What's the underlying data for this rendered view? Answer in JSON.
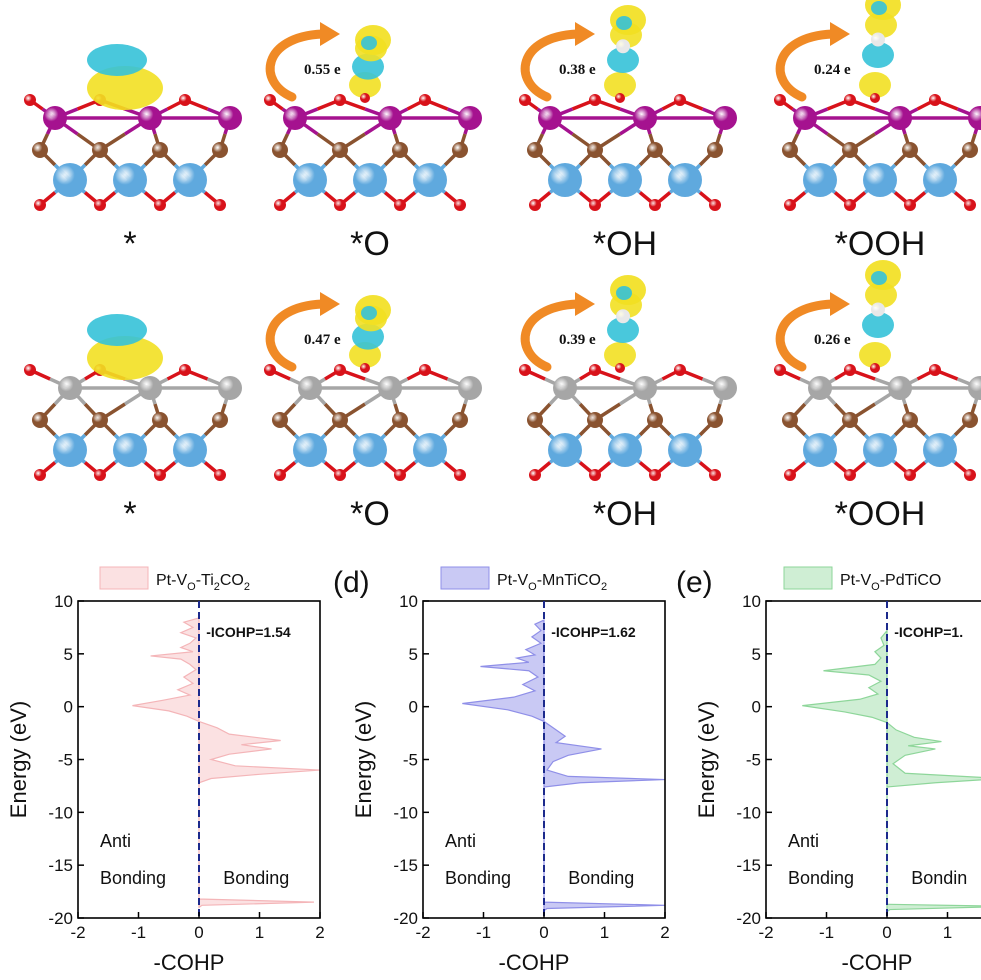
{
  "structures": {
    "rows": [
      {
        "name": "top-row",
        "labels": [
          "*",
          "*O",
          "*OH",
          "*OOH"
        ],
        "charges": [
          "",
          "0.55 e",
          "0.38 e",
          "0.24 e"
        ],
        "metal_color": "#a5128f"
      },
      {
        "name": "bottom-row",
        "labels": [
          "*",
          "*O",
          "*OH",
          "*OOH"
        ],
        "charges": [
          "",
          "0.47 e",
          "0.39 e",
          "0.26 e"
        ],
        "metal_color": "#a6a6a6"
      }
    ],
    "colors": {
      "yellow_iso": "#f2e022",
      "cyan_iso": "#35c2d8",
      "oxygen": "#d8121a",
      "carbon": "#8a5330",
      "titanium": "#5fa9de",
      "arrow": "#f08a25"
    }
  },
  "chart_data": [
    {
      "type": "area",
      "panel_letter": "",
      "legend": "Pt-VO-Ti2CO2",
      "legend_parts": {
        "a": "Pt-V",
        "b": "O",
        "c": "-Ti",
        "d": "2",
        "e": "CO",
        "f": "2"
      },
      "annotation": "-ICOHP=1.54",
      "color": "#f4b5b8",
      "fill": "#fbe1e2",
      "xlabel": "-COHP",
      "ylabel": "Energy (eV)",
      "xlim": [
        -2,
        2
      ],
      "ylim": [
        -20,
        10
      ],
      "xticks": [
        "-2",
        "-1",
        "0",
        "1",
        "2"
      ],
      "yticks": [
        "10",
        "5",
        "0",
        "-5",
        "-10",
        "-15",
        "-20"
      ],
      "region_labels": {
        "anti_line1": "Anti",
        "anti_line2": "Bonding",
        "bonding": "Bonding"
      },
      "points": [
        [
          0,
          8.4
        ],
        [
          -0.25,
          8
        ],
        [
          -0.1,
          7.5
        ],
        [
          -0.3,
          7
        ],
        [
          -0.05,
          6.5
        ],
        [
          -0.15,
          6
        ],
        [
          -0.3,
          5.6
        ],
        [
          -0.1,
          5.2
        ],
        [
          -0.8,
          4.8
        ],
        [
          -0.3,
          4.5
        ],
        [
          -0.15,
          4
        ],
        [
          -0.05,
          3.5
        ],
        [
          -0.25,
          2.8
        ],
        [
          -0.1,
          2.2
        ],
        [
          -0.35,
          1.6
        ],
        [
          -0.15,
          1.1
        ],
        [
          -0.6,
          0.6
        ],
        [
          -1.1,
          0.1
        ],
        [
          -0.5,
          -0.4
        ],
        [
          -0.2,
          -0.9
        ],
        [
          0,
          -1.4
        ],
        [
          0.3,
          -2
        ],
        [
          0.5,
          -2.6
        ],
        [
          1.35,
          -3.2
        ],
        [
          0.7,
          -3.6
        ],
        [
          1.2,
          -4
        ],
        [
          0.5,
          -4.5
        ],
        [
          0.2,
          -5
        ],
        [
          0.6,
          -5.6
        ],
        [
          2,
          -6
        ],
        [
          1,
          -6.4
        ],
        [
          0.2,
          -6.8
        ],
        [
          0,
          -7.2
        ],
        [
          0,
          -18.2
        ],
        [
          1.9,
          -18.5
        ],
        [
          0.05,
          -18.8
        ],
        [
          0,
          -19
        ]
      ]
    },
    {
      "type": "area",
      "panel_letter": "(d)",
      "legend": "Pt-VO-MnTiCO2",
      "legend_parts": {
        "a": "Pt-V",
        "b": "O",
        "c": "-MnTiCO",
        "d": "2",
        "e": "",
        "f": ""
      },
      "annotation": "-ICOHP=1.62",
      "color": "#8f8fe8",
      "fill": "#c9c9f4",
      "xlabel": "-COHP",
      "ylabel": "Energy (eV)",
      "xlim": [
        -2,
        2
      ],
      "ylim": [
        -20,
        10
      ],
      "xticks": [
        "-2",
        "-1",
        "0",
        "1",
        "2"
      ],
      "yticks": [
        "10",
        "5",
        "0",
        "-5",
        "-10",
        "-15",
        "-20"
      ],
      "region_labels": {
        "anti_line1": "Anti",
        "anti_line2": "Bonding",
        "bonding": "Bonding"
      },
      "points": [
        [
          0,
          8.2
        ],
        [
          -0.15,
          7.8
        ],
        [
          -0.05,
          7.2
        ],
        [
          -0.2,
          6.6
        ],
        [
          -0.05,
          6
        ],
        [
          -0.3,
          5.4
        ],
        [
          -0.15,
          4.9
        ],
        [
          -0.45,
          4.6
        ],
        [
          -0.25,
          4.2
        ],
        [
          -1.05,
          3.8
        ],
        [
          -0.25,
          3.4
        ],
        [
          -0.1,
          2.8
        ],
        [
          -0.35,
          2.1
        ],
        [
          -0.15,
          1.5
        ],
        [
          -0.5,
          0.9
        ],
        [
          -1.35,
          0.3
        ],
        [
          -0.6,
          -0.3
        ],
        [
          -0.2,
          -0.9
        ],
        [
          0,
          -1.4
        ],
        [
          0.15,
          -2
        ],
        [
          0.35,
          -2.8
        ],
        [
          0.2,
          -3.4
        ],
        [
          0.95,
          -4
        ],
        [
          0.4,
          -4.6
        ],
        [
          0.15,
          -5.2
        ],
        [
          0.05,
          -6
        ],
        [
          0.4,
          -6.6
        ],
        [
          2,
          -6.9
        ],
        [
          0.6,
          -7.2
        ],
        [
          0,
          -7.6
        ],
        [
          0,
          -18.5
        ],
        [
          2,
          -18.8
        ],
        [
          0.05,
          -19.1
        ],
        [
          0,
          -19.3
        ]
      ]
    },
    {
      "type": "area",
      "panel_letter": "(e)",
      "legend": "Pt-VO-PdTiCO",
      "legend_parts": {
        "a": "Pt-V",
        "b": "O",
        "c": "-PdTiCO",
        "d": "",
        "e": "",
        "f": ""
      },
      "annotation": "-ICOHP=1.",
      "color": "#8ed69a",
      "fill": "#cfeed4",
      "xlabel": "-COHP",
      "ylabel": "Energy (eV)",
      "xlim": [
        -2,
        2
      ],
      "ylim": [
        -20,
        10
      ],
      "xticks": [
        "-2",
        "-1",
        "0",
        "1"
      ],
      "yticks": [
        "10",
        "5",
        "0",
        "-5",
        "-10",
        "-15",
        "-20"
      ],
      "region_labels": {
        "anti_line1": "Anti",
        "anti_line2": "Bonding",
        "bonding": "Bondin"
      },
      "points": [
        [
          0,
          7.2
        ],
        [
          -0.1,
          6.5
        ],
        [
          -0.05,
          5.8
        ],
        [
          -0.2,
          5.2
        ],
        [
          -0.1,
          4.6
        ],
        [
          -0.2,
          4
        ],
        [
          -1.05,
          3.4
        ],
        [
          -0.3,
          3
        ],
        [
          -0.1,
          2.4
        ],
        [
          -0.3,
          1.8
        ],
        [
          -0.15,
          1.2
        ],
        [
          -0.45,
          0.7
        ],
        [
          -1.4,
          0.1
        ],
        [
          -0.7,
          -0.5
        ],
        [
          -0.25,
          -1
        ],
        [
          0,
          -1.5
        ],
        [
          0.15,
          -2.2
        ],
        [
          0.45,
          -2.9
        ],
        [
          0.9,
          -3.3
        ],
        [
          0.35,
          -3.7
        ],
        [
          0.8,
          -4
        ],
        [
          0.3,
          -4.6
        ],
        [
          0.1,
          -5.4
        ],
        [
          0.3,
          -6.3
        ],
        [
          1.9,
          -6.8
        ],
        [
          0.8,
          -7.2
        ],
        [
          0,
          -7.6
        ],
        [
          0,
          -18.7
        ],
        [
          2,
          -18.9
        ],
        [
          0.05,
          -19.2
        ],
        [
          0,
          -19.4
        ]
      ]
    }
  ]
}
